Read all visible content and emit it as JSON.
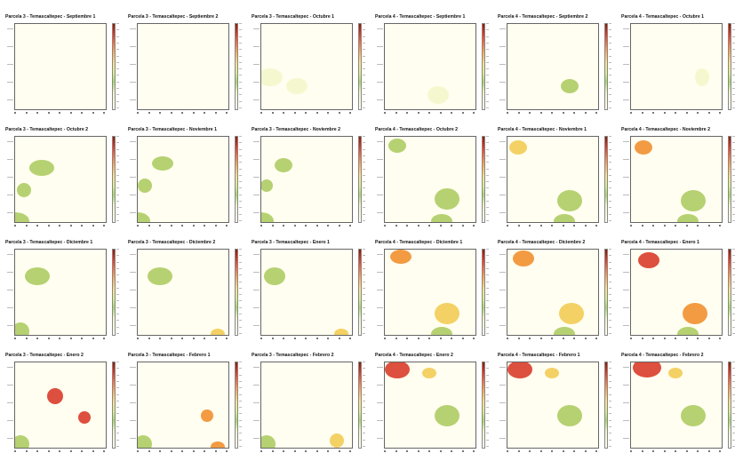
{
  "chart_data": {
    "type": "heatmap",
    "colors": {
      "background": "#fffef0",
      "pale": "#f3f7c9",
      "green": "#a9c95a",
      "yellow": "#f2c94c",
      "orange": "#f08a24",
      "red": "#d7301f"
    },
    "panels": [
      {
        "title": "Parcela 3 - Temascaltepec - Septiembre 1",
        "blobs": []
      },
      {
        "title": "Parcela 3 - Temascaltepec - Septiembre 2",
        "blobs": []
      },
      {
        "title": "Parcela 3 - Temascaltepec - Octubre 1",
        "blobs": []
      },
      {
        "title": "Parcela 4 - Temascaltepec - Septiembre 1",
        "blobs": []
      },
      {
        "title": "Parcela 4 - Temascaltepec - Septiembre 2",
        "blobs": []
      },
      {
        "title": "Parcela 4 - Temascaltepec - Octubre 1",
        "blobs": []
      },
      {
        "title": "Parcela 3 - Temascaltepec - Octubre 2",
        "blobs": []
      },
      {
        "title": "Parcela 3 - Temascaltepec - Noviembre 1",
        "blobs": []
      },
      {
        "title": "Parcela 3 - Temascaltepec - Noviembre 2",
        "blobs": []
      },
      {
        "title": "Parcela 4 - Temascaltepec - Octubre 2",
        "blobs": []
      },
      {
        "title": "Parcela 4 - Temascaltepec - Noviembre 1",
        "blobs": []
      },
      {
        "title": "Parcela 4 - Temascaltepec - Noviembre 2",
        "blobs": []
      },
      {
        "title": "Parcela 3 - Temascaltepec - Diciembre 1",
        "blobs": []
      },
      {
        "title": "Parcela 3 - Temascaltepec - Diciembre 2",
        "blobs": []
      },
      {
        "title": "Parcela 3 - Temascaltepec - Enero 1",
        "blobs": []
      },
      {
        "title": "Parcela 4 - Temascaltepec - Diciembre 1",
        "blobs": []
      },
      {
        "title": "Parcela 4 - Temascaltepec - Diciembre 2",
        "blobs": []
      },
      {
        "title": "Parcela 4 - Temascaltepec - Enero 1",
        "blobs": []
      },
      {
        "title": "Parcela 3 - Temascaltepec - Enero 2",
        "blobs": []
      },
      {
        "title": "Parcela 3 - Temascaltepec - Febrero 1",
        "blobs": []
      },
      {
        "title": "Parcela 3 - Temascaltepec - Febrero 2",
        "blobs": []
      },
      {
        "title": "Parcela 4 - Temascaltepec - Enero 2",
        "blobs": []
      },
      {
        "title": "Parcela 4 - Temascaltepec - Febrero 1",
        "blobs": []
      },
      {
        "title": "Parcela 4 - Temascaltepec - Febrero 2",
        "blobs": []
      }
    ]
  }
}
